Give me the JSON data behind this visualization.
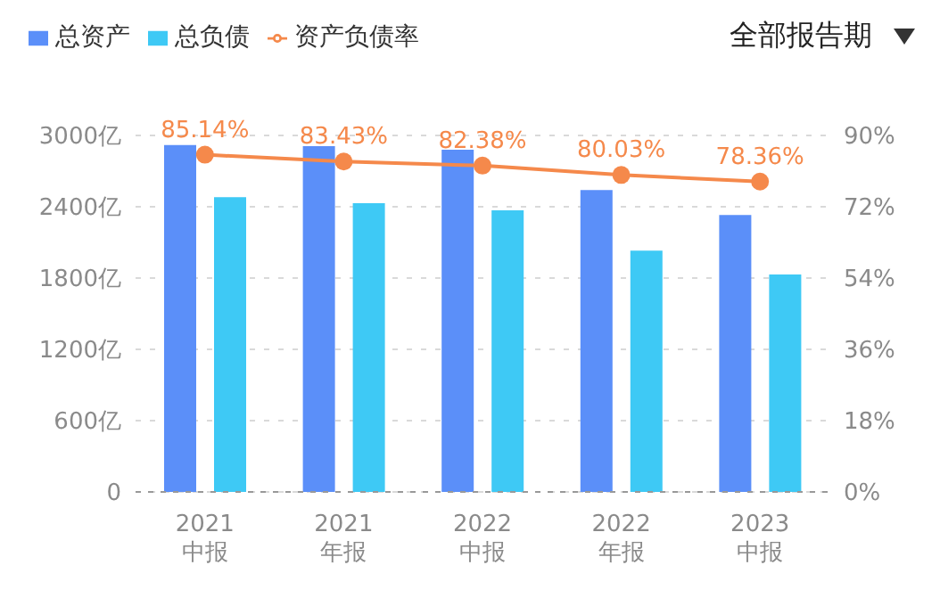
{
  "chart_data": {
    "type": "bar",
    "categories": [
      "2021\n中报",
      "2021\n年报",
      "2022\n中报",
      "2022\n年报",
      "2023\n中报"
    ],
    "series": [
      {
        "name": "总资产",
        "color": "#5b8ff9",
        "values": [
          2920,
          2910,
          2880,
          2540,
          2330
        ]
      },
      {
        "name": "总负债",
        "color": "#3ec9f5",
        "values": [
          2480,
          2430,
          2370,
          2030,
          1830
        ]
      },
      {
        "name": "资产负债率",
        "type": "line",
        "axis": "y2",
        "color": "#f5894b",
        "values": [
          85.14,
          83.43,
          82.38,
          80.03,
          78.36
        ],
        "value_labels": [
          "85.14%",
          "83.43%",
          "82.38%",
          "80.03%",
          "78.36%"
        ]
      }
    ],
    "ylim": [
      0,
      3000
    ],
    "yticks": [
      0,
      {
        "value": 600,
        "label": "600亿"
      },
      {
        "value": 1200,
        "label": "1200亿"
      },
      {
        "value": 1800,
        "label": "1800亿"
      },
      {
        "value": 2400,
        "label": "2400亿"
      },
      {
        "value": 3000,
        "label": "3000亿"
      }
    ],
    "y2lim": [
      0,
      90
    ],
    "y2ticks": [
      {
        "value": 0,
        "label": "0%"
      },
      {
        "value": 18,
        "label": "18%"
      },
      {
        "value": 36,
        "label": "36%"
      },
      {
        "value": 54,
        "label": "54%"
      },
      {
        "value": 72,
        "label": "72%"
      },
      {
        "value": 90,
        "label": "90%"
      }
    ],
    "grid": "y",
    "legend": "top left",
    "marker": "circle",
    "annotations": [
      "全部报告期"
    ]
  }
}
